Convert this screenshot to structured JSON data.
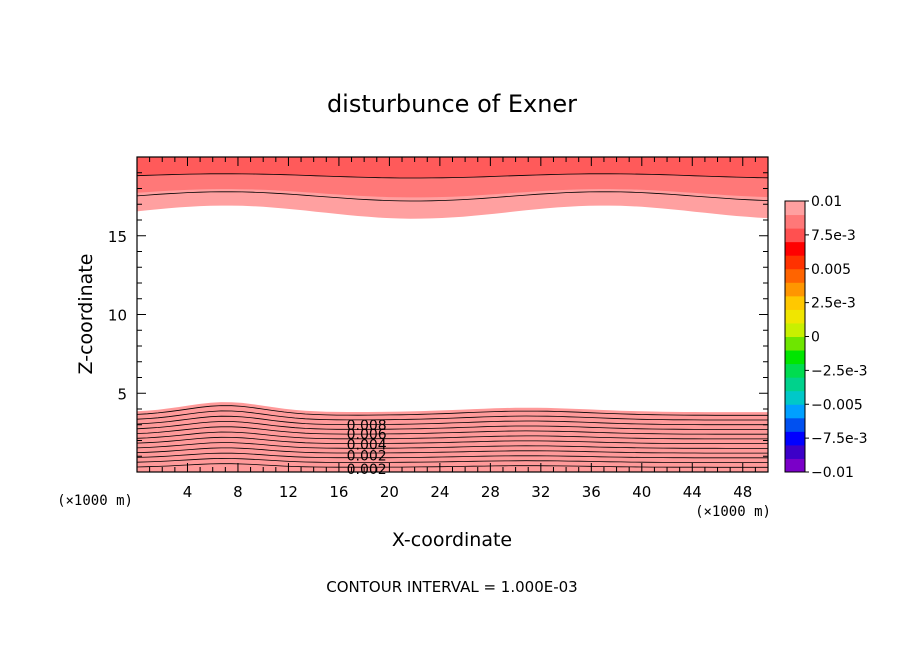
{
  "chart_data": {
    "type": "heatmap",
    "title": "disturbunce of Exner",
    "xlabel": "X-coordinate",
    "ylabel": "Z-coordinate",
    "x_unit_label_left": "(×1000 m)",
    "x_unit_label_right": "(×1000 m)",
    "xlim": [
      0,
      50
    ],
    "ylim": [
      0,
      20
    ],
    "x_ticks": [
      4,
      8,
      12,
      16,
      20,
      24,
      28,
      32,
      36,
      40,
      44,
      48
    ],
    "y_ticks": [
      5,
      10,
      15
    ],
    "colorbar": {
      "ticks": [
        "0.01",
        "7.5e-3",
        "0.005",
        "2.5e-3",
        "0",
        "−2.5e-3",
        "−0.005",
        "−7.5e-3",
        "−0.01"
      ],
      "colors": [
        "#7a00c8",
        "#3c00c8",
        "#0000ff",
        "#0050f0",
        "#00a0ff",
        "#00c8c8",
        "#00d28c",
        "#00dc50",
        "#00e600",
        "#6ee600",
        "#c8f000",
        "#f0e600",
        "#ffc800",
        "#ff9600",
        "#ff6400",
        "#ff3200",
        "#ff0000",
        "#ff5050",
        "#ff7878",
        "#ffa0a0"
      ]
    },
    "contour_labels": [
      "0.008",
      "0.006",
      "0.004",
      "0.002",
      "0.002"
    ],
    "footer": "CONTOUR INTERVAL = 1.000E-03"
  }
}
